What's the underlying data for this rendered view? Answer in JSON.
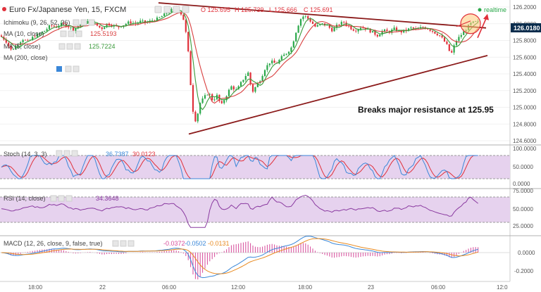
{
  "header": {
    "symbol": "Euro Fx/Japanese Yen, 15, FXCM",
    "ohlc": [
      "O 125.695",
      "H 125.739",
      "L 125.666",
      "C 125.691"
    ],
    "ohlc_colors": [
      "#e0303a",
      "#e0303a",
      "#e0303a",
      "#e0303a"
    ],
    "realtime_label": "realtime",
    "realtime_color": "#2aa84a"
  },
  "indicators": {
    "ichimoku": "Ichimoku (9, 26, 52, 26)",
    "ma10": "MA (10, close)",
    "ma10_value": "125.5193",
    "ma5": "MA (5, close)",
    "ma5_value": "125.7224",
    "ma200": "MA (200, close)"
  },
  "annotation": "Breaks major resistance at 125.95",
  "colors": {
    "up": "#2aa84a",
    "down": "#e0303a",
    "trendline": "#8b1a1a",
    "arrow": "#e0303a",
    "ma_green": "#3a9a3a",
    "ma_red": "#d94040",
    "osc_band": "#e6d2ee",
    "stoch_k": "#3a87d8",
    "stoch_d": "#e0303a",
    "rsi": "#8a3aa0",
    "macd": "#3a87d8",
    "signal": "#e88a20",
    "hist": "#d64a9a",
    "price_tag": "#0b2d4d"
  },
  "price_axis": {
    "ticks": [
      "126.2000",
      "126.0000",
      "125.8000",
      "125.6000",
      "125.4000",
      "125.2000",
      "125.0000",
      "124.8000",
      "124.6000"
    ],
    "current": "126.0180"
  },
  "time_axis": [
    "18:00",
    "22",
    "06:00",
    "12:00",
    "18:00",
    "23",
    "06:00",
    "12:0"
  ],
  "stoch": {
    "label": "Stoch (14, 3, 3)",
    "values": [
      "36.7387",
      "30.0123"
    ],
    "value_colors": [
      "#3a87d8",
      "#e0303a"
    ],
    "ticks": [
      "100.0000",
      "50.0000",
      "0.0000"
    ]
  },
  "rsi": {
    "label": "RSI (14, close)",
    "value": "34.3648",
    "ticks": [
      "75.0000",
      "50.0000",
      "25.0000"
    ]
  },
  "macd": {
    "label": "MACD (12, 26, close, 9, false, true)",
    "values": [
      "-0.0372",
      "-0.0502",
      "-0.0131"
    ],
    "value_colors": [
      "#d64a9a",
      "#3a87d8",
      "#e88a20"
    ],
    "ticks": [
      "0.0000",
      "-0.2000"
    ]
  },
  "chart_data": {
    "type": "candlestick",
    "title": "Euro Fx/Japanese Yen, 15, FXCM",
    "ylim": [
      124.6,
      126.2
    ],
    "close_path": [
      [
        0,
        125.86
      ],
      [
        8,
        125.8
      ],
      [
        16,
        125.68
      ],
      [
        24,
        125.74
      ],
      [
        32,
        125.82
      ],
      [
        40,
        125.78
      ],
      [
        48,
        125.85
      ],
      [
        56,
        125.88
      ],
      [
        64,
        125.92
      ],
      [
        72,
        125.98
      ],
      [
        80,
        125.96
      ],
      [
        88,
        126.0
      ],
      [
        96,
        125.97
      ],
      [
        104,
        125.93
      ],
      [
        112,
        125.98
      ],
      [
        120,
        126.02
      ],
      [
        128,
        126.03
      ],
      [
        136,
        125.99
      ],
      [
        144,
        125.94
      ],
      [
        152,
        126.0
      ],
      [
        160,
        125.98
      ],
      [
        168,
        125.96
      ],
      [
        176,
        125.99
      ],
      [
        184,
        126.02
      ],
      [
        192,
        126.0
      ],
      [
        200,
        126.03
      ],
      [
        208,
        126.01
      ],
      [
        216,
        126.04
      ],
      [
        224,
        126.06
      ],
      [
        232,
        126.1
      ],
      [
        240,
        126.15
      ],
      [
        248,
        126.18
      ],
      [
        256,
        126.14
      ],
      [
        262,
        126.02
      ],
      [
        268,
        125.6
      ],
      [
        272,
        125.1
      ],
      [
        276,
        124.82
      ],
      [
        280,
        124.9
      ],
      [
        284,
        125.05
      ],
      [
        290,
        125.12
      ],
      [
        296,
        125.18
      ],
      [
        302,
        125.08
      ],
      [
        308,
        125.14
      ],
      [
        314,
        125.02
      ],
      [
        320,
        125.12
      ],
      [
        328,
        125.25
      ],
      [
        336,
        125.2
      ],
      [
        344,
        125.32
      ],
      [
        352,
        125.42
      ],
      [
        358,
        125.18
      ],
      [
        364,
        125.26
      ],
      [
        370,
        125.34
      ],
      [
        376,
        125.46
      ],
      [
        384,
        125.55
      ],
      [
        392,
        125.52
      ],
      [
        400,
        125.6
      ],
      [
        408,
        125.66
      ],
      [
        414,
        125.72
      ],
      [
        420,
        125.9
      ],
      [
        426,
        126.05
      ],
      [
        432,
        126.1
      ],
      [
        440,
        126.04
      ],
      [
        448,
        125.96
      ],
      [
        456,
        126.0
      ],
      [
        464,
        125.98
      ],
      [
        472,
        125.92
      ],
      [
        480,
        125.99
      ],
      [
        488,
        126.02
      ],
      [
        496,
        125.96
      ],
      [
        504,
        125.92
      ],
      [
        512,
        125.96
      ],
      [
        520,
        125.94
      ],
      [
        528,
        125.9
      ],
      [
        536,
        125.86
      ],
      [
        544,
        125.92
      ],
      [
        552,
        125.9
      ],
      [
        560,
        125.94
      ],
      [
        568,
        125.9
      ],
      [
        576,
        125.92
      ],
      [
        584,
        125.95
      ],
      [
        592,
        125.93
      ],
      [
        600,
        125.96
      ],
      [
        608,
        125.94
      ],
      [
        616,
        125.9
      ],
      [
        624,
        125.86
      ],
      [
        630,
        125.8
      ],
      [
        636,
        125.72
      ],
      [
        640,
        125.62
      ],
      [
        644,
        125.72
      ],
      [
        648,
        125.8
      ],
      [
        652,
        125.84
      ],
      [
        656,
        125.88
      ],
      [
        660,
        125.92
      ],
      [
        664,
        125.96
      ],
      [
        668,
        126.0
      ],
      [
        674,
        126.02
      ],
      [
        680,
        126.02
      ]
    ],
    "resistance_line": [
      [
        225,
        126.25
      ],
      [
        690,
        125.95
      ]
    ],
    "support_line": [
      [
        268,
        124.68
      ],
      [
        692,
        125.62
      ]
    ],
    "series": [
      {
        "name": "MA (10, close)",
        "value": 125.5193
      },
      {
        "name": "MA (5, close)",
        "value": 125.7224
      }
    ]
  }
}
